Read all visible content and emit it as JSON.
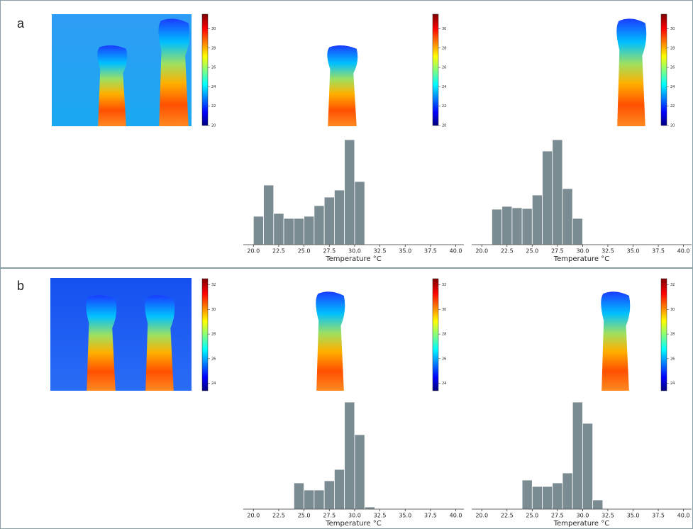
{
  "panel_labels": [
    "a",
    "b"
  ],
  "chart_data": [
    {
      "type": "histogram",
      "bins": [
        20,
        21,
        22,
        23,
        24,
        25,
        26,
        27,
        28,
        29,
        30,
        31
      ],
      "values": [
        40,
        84,
        44,
        37,
        37,
        40,
        55,
        67,
        77,
        148,
        89
      ],
      "color": "#7a8c92",
      "xlim": [
        19,
        40.8
      ],
      "ylim": [
        0,
        155
      ],
      "xticks": [
        {
          "value": 20,
          "label": "20.0"
        },
        {
          "value": 22.5,
          "label": "22.5"
        },
        {
          "value": 25,
          "label": "25.0"
        },
        {
          "value": 27.5,
          "label": "27.5"
        },
        {
          "value": 30,
          "label": "30.0"
        },
        {
          "value": 32.5,
          "label": "32.5"
        },
        {
          "value": 35,
          "label": "35.0"
        },
        {
          "value": 37.5,
          "label": "37.5"
        },
        {
          "value": 40,
          "label": "40.0"
        }
      ],
      "xlabel": "Temperature °C"
    },
    {
      "type": "histogram",
      "bins": [
        21,
        22,
        23,
        24,
        25,
        26,
        27,
        28,
        29,
        30
      ],
      "values": [
        50,
        54,
        52,
        51,
        70,
        132,
        148,
        79,
        37
      ],
      "color": "#7a8c92",
      "xlim": [
        19,
        40.8
      ],
      "ylim": [
        0,
        155
      ],
      "xticks": [
        {
          "value": 20,
          "label": "20.0"
        },
        {
          "value": 22.5,
          "label": "22.5"
        },
        {
          "value": 25,
          "label": "25.0"
        },
        {
          "value": 27.5,
          "label": "27.5"
        },
        {
          "value": 30,
          "label": "30.0"
        },
        {
          "value": 32.5,
          "label": "32.5"
        },
        {
          "value": 35,
          "label": "35.0"
        },
        {
          "value": 37.5,
          "label": "37.5"
        },
        {
          "value": 40,
          "label": "40.0"
        }
      ],
      "xlabel": "Temperature °C"
    },
    {
      "type": "histogram",
      "bins": [
        24,
        25,
        26,
        27,
        28,
        29,
        30,
        31,
        32
      ],
      "values": [
        37,
        27,
        27,
        40,
        56,
        151,
        105,
        3
      ],
      "color": "#7a8c92",
      "xlim": [
        19,
        40.8
      ],
      "ylim": [
        0,
        155
      ],
      "xticks": [
        {
          "value": 20,
          "label": "20.0"
        },
        {
          "value": 22.5,
          "label": "22.5"
        },
        {
          "value": 25,
          "label": "25.0"
        },
        {
          "value": 27.5,
          "label": "27.5"
        },
        {
          "value": 30,
          "label": "30.0"
        },
        {
          "value": 32.5,
          "label": "32.5"
        },
        {
          "value": 35,
          "label": "35.0"
        },
        {
          "value": 37.5,
          "label": "37.5"
        },
        {
          "value": 40,
          "label": "40.0"
        }
      ],
      "xlabel": "Temperature °C"
    },
    {
      "type": "histogram",
      "bins": [
        24,
        25,
        26,
        27,
        28,
        29,
        30,
        31,
        32
      ],
      "values": [
        41,
        32,
        32,
        37,
        51,
        151,
        121,
        13
      ],
      "color": "#7a8c92",
      "xlim": [
        19,
        40.8
      ],
      "ylim": [
        0,
        155
      ],
      "xticks": [
        {
          "value": 20,
          "label": "20.0"
        },
        {
          "value": 22.5,
          "label": "22.5"
        },
        {
          "value": 25,
          "label": "25.0"
        },
        {
          "value": 27.5,
          "label": "27.5"
        },
        {
          "value": 30,
          "label": "30.0"
        },
        {
          "value": 32.5,
          "label": "32.5"
        },
        {
          "value": 35,
          "label": "35.0"
        },
        {
          "value": 37.5,
          "label": "37.5"
        },
        {
          "value": 40,
          "label": "40.0"
        }
      ],
      "xlabel": "Temperature °C"
    },
    {
      "type": "colorbar",
      "ylim": [
        20,
        31.5
      ],
      "yticks": [
        20,
        22,
        24,
        26,
        28,
        30
      ]
    },
    {
      "type": "colorbar",
      "ylim": [
        20,
        31.5
      ],
      "yticks": [
        20,
        22,
        24,
        26,
        28,
        30
      ]
    },
    {
      "type": "colorbar",
      "ylim": [
        20,
        31.5
      ],
      "yticks": [
        20,
        22,
        24,
        26,
        28,
        30
      ]
    },
    {
      "type": "colorbar",
      "ylim": [
        23.4,
        32.5
      ],
      "yticks": [
        24,
        26,
        28,
        30,
        32
      ]
    },
    {
      "type": "colorbar",
      "ylim": [
        23.4,
        32.5
      ],
      "yticks": [
        24,
        26,
        28,
        30,
        32
      ]
    },
    {
      "type": "colorbar",
      "ylim": [
        23.4,
        32.5
      ],
      "yticks": [
        24,
        26,
        28,
        30,
        32
      ]
    }
  ]
}
